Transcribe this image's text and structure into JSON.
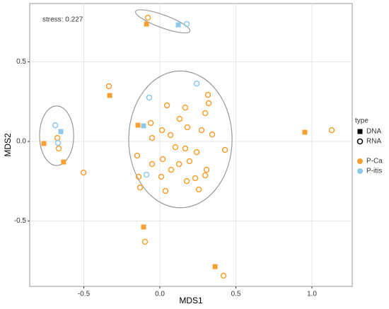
{
  "chart_data": {
    "type": "scatter",
    "annotation": "stress: 0.227",
    "x_label": "MDS1",
    "y_label": "MDS2",
    "xlim": [
      -0.856,
      1.265
    ],
    "ylim": [
      -0.911,
      0.867
    ],
    "xticks": [
      -0.5,
      {
        "value": 0,
        "label": "0.0"
      },
      0.5,
      {
        "value": 1,
        "label": "1.0"
      }
    ],
    "yticks": [
      -0.5,
      {
        "value": 0,
        "label": "0.0"
      },
      0.5
    ],
    "grid": true,
    "type_legend": {
      "title": "type",
      "items": [
        "DNA",
        "RNA"
      ],
      "shapes": [
        "square",
        "circle"
      ]
    },
    "series": [
      {
        "name": "P-Ca",
        "color": "#f5a030",
        "x": [
          -0.088,
          -0.33,
          -0.144,
          -0.763,
          -0.633,
          -0.107,
          0.363,
          0.953,
          -0.079,
          -0.335,
          -0.502,
          -0.098,
          0.419,
          1.13,
          -0.674,
          -0.665,
          -0.06,
          0.047,
          0.167,
          0.316,
          0.321,
          0.298,
          0.13,
          0.014,
          -0.051,
          0.07,
          0.181,
          0.274,
          0.344,
          0.428,
          0.102,
          0.167,
          0.242,
          -0.149,
          0.019,
          -0.051,
          0.074,
          0.126,
          0.195,
          0.307,
          0.177,
          0.233,
          0.298,
          0.009,
          -0.14,
          0.037,
          0.256,
          -0.13
        ],
        "y": [
          0.738,
          0.289,
          0.102,
          -0.013,
          -0.129,
          -0.538,
          -0.787,
          0.058,
          0.778,
          0.347,
          -0.196,
          -0.631,
          -0.844,
          0.071,
          0.022,
          -0.044,
          0.116,
          0.227,
          0.213,
          0.293,
          0.24,
          0.178,
          0.142,
          0.071,
          0.022,
          0.04,
          0.089,
          0.071,
          0.044,
          -0.053,
          -0.036,
          -0.044,
          -0.067,
          -0.089,
          -0.111,
          -0.142,
          -0.178,
          -0.142,
          -0.124,
          -0.178,
          -0.249,
          -0.231,
          -0.213,
          -0.222,
          -0.222,
          -0.311,
          -0.302,
          -0.289
        ],
        "types": [
          0,
          0,
          0,
          0,
          0,
          0,
          0,
          0,
          1,
          1,
          1,
          1,
          1,
          1,
          1,
          1,
          1,
          1,
          1,
          1,
          1,
          1,
          1,
          1,
          1,
          1,
          1,
          1,
          1,
          1,
          1,
          1,
          1,
          1,
          1,
          1,
          1,
          1,
          1,
          1,
          1,
          1,
          1,
          1,
          1,
          1,
          1,
          1
        ]
      },
      {
        "name": "P-itis",
        "color": "#8ec9ea",
        "x": [
          0.121,
          -0.107,
          -0.651,
          0.177,
          0.242,
          -0.07,
          -0.688,
          -0.67,
          -0.088
        ],
        "y": [
          0.733,
          0.098,
          0.062,
          0.738,
          0.364,
          0.276,
          0.102,
          -0.009,
          -0.209
        ],
        "types": [
          0,
          0,
          0,
          1,
          1,
          1,
          1,
          1,
          1
        ]
      }
    ],
    "ellipses": [
      {
        "cx": 0.019,
        "cy": 0.755,
        "rx": 0.19,
        "ry": 0.04,
        "angle": 20
      },
      {
        "cx": -0.679,
        "cy": 0.036,
        "rx": 0.112,
        "ry": 0.187,
        "angle": 0
      },
      {
        "cx": 0.135,
        "cy": 0.013,
        "rx": 0.34,
        "ry": 0.43,
        "angle": 0
      }
    ]
  }
}
